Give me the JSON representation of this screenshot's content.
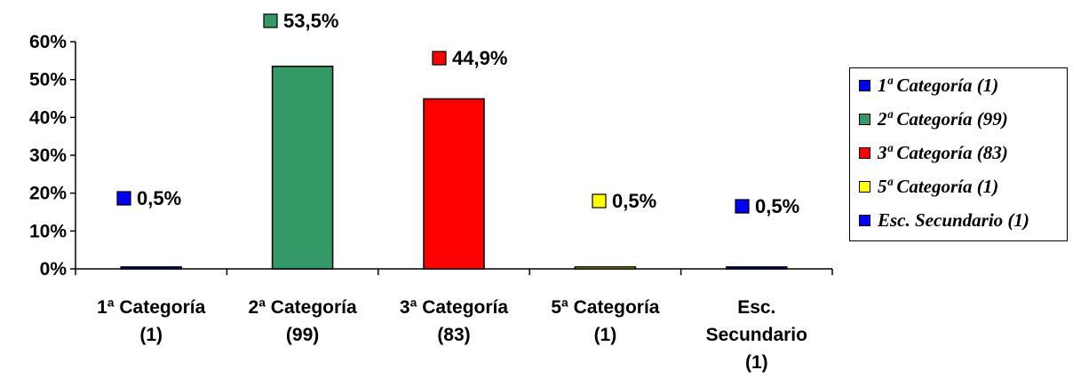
{
  "chart_data": {
    "type": "bar",
    "categories": [
      "1ª Categoría (1)",
      "2ª Categoría (99)",
      "3ª Categoría (83)",
      "5ª Categoría (1)",
      "Esc. Secundario (1)"
    ],
    "category_lines": [
      [
        "1ª Categoría",
        "(1)"
      ],
      [
        "2ª Categoría",
        "(99)"
      ],
      [
        "3ª Categoría",
        "(83)"
      ],
      [
        "5ª Categoría",
        "(1)"
      ],
      [
        "Esc.",
        "Secundario",
        "(1)"
      ]
    ],
    "values": [
      0.5,
      53.5,
      44.9,
      0.5,
      0.5
    ],
    "value_labels": [
      "0,5%",
      "53,5%",
      "44,9%",
      "0,5%",
      "0,5%"
    ],
    "colors": [
      "#0000ff",
      "#339966",
      "#ff0000",
      "#ffff00",
      "#0000ff"
    ],
    "yticks": [
      "0%",
      "10%",
      "20%",
      "30%",
      "40%",
      "50%",
      "60%"
    ],
    "ylim": [
      0,
      60
    ],
    "title": "",
    "xlabel": "",
    "ylabel": "",
    "grid": false,
    "legend_position": "right",
    "legend": [
      {
        "label": "1ª Categoría (1)",
        "color": "#0000ff"
      },
      {
        "label": "2ª Categoría (99)",
        "color": "#339966"
      },
      {
        "label": "3ª Categoría (83)",
        "color": "#ff0000"
      },
      {
        "label": "5ª Categoría (1)",
        "color": "#ffff00"
      },
      {
        "label": "Esc. Secundario (1)",
        "color": "#0000ff"
      }
    ]
  }
}
